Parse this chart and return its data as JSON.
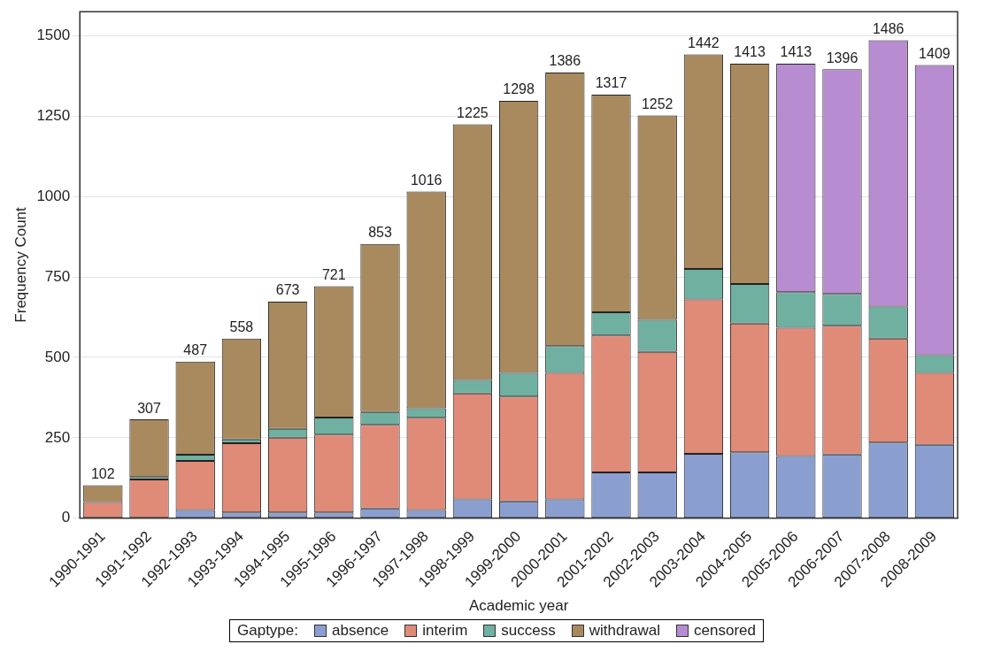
{
  "chart_data": {
    "type": "bar",
    "stacked": true,
    "xlabel": "Academic year",
    "ylabel": "Frequency Count",
    "legend_title": "Gaptype:",
    "legend": "bottom",
    "grid": "y",
    "categories": [
      "1990-1991",
      "1991-1992",
      "1992-1993",
      "1993-1994",
      "1994-1995",
      "1995-1996",
      "1996-1997",
      "1997-1998",
      "1998-1999",
      "1999-2000",
      "2000-2001",
      "2001-2002",
      "2002-2003",
      "2003-2004",
      "2004-2005",
      "2005-2006",
      "2006-2007",
      "2007-2008",
      "2008-2009"
    ],
    "ylim": [
      0,
      1575
    ],
    "yticks": [
      0,
      250,
      500,
      750,
      1000,
      1250,
      1500
    ],
    "series": [
      {
        "name": "absence",
        "color": "#8a9fd0",
        "values": [
          0,
          null,
          25,
          18,
          18,
          18,
          30,
          25,
          58,
          52,
          58,
          142,
          142,
          200,
          205,
          193,
          198,
          235,
          228
        ]
      },
      {
        "name": "interim",
        "color": "#e08a78",
        "values": [
          50,
          120,
          153,
          215,
          232,
          242,
          260,
          287,
          330,
          326,
          394,
          426,
          375,
          480,
          400,
          399,
          400,
          323,
          224
        ]
      },
      {
        "name": "success",
        "color": "#6fb0a0",
        "values": [
          0,
          8,
          19,
          12,
          28,
          53,
          40,
          30,
          42,
          74,
          83,
          72,
          100,
          95,
          123,
          111,
          99,
          100,
          55
        ]
      },
      {
        "name": "withdrawal",
        "color": "#a88a5e",
        "values": [
          52,
          179,
          290,
          313,
          395,
          408,
          523,
          674,
          795,
          846,
          851,
          677,
          635,
          667,
          685,
          null,
          null,
          null,
          null
        ]
      },
      {
        "name": "censored",
        "color": "#b78cd0",
        "values": [
          null,
          null,
          null,
          null,
          null,
          null,
          null,
          null,
          null,
          null,
          null,
          null,
          null,
          null,
          null,
          710,
          699,
          828,
          902
        ]
      }
    ],
    "totals": [
      "102",
      "307",
      "487",
      "558",
      "673",
      "721",
      "853",
      "1016",
      "1225",
      "1298",
      "1386",
      "1317",
      "1252",
      "1442",
      "1413",
      "1413",
      "1396",
      "1486",
      "1409"
    ]
  }
}
